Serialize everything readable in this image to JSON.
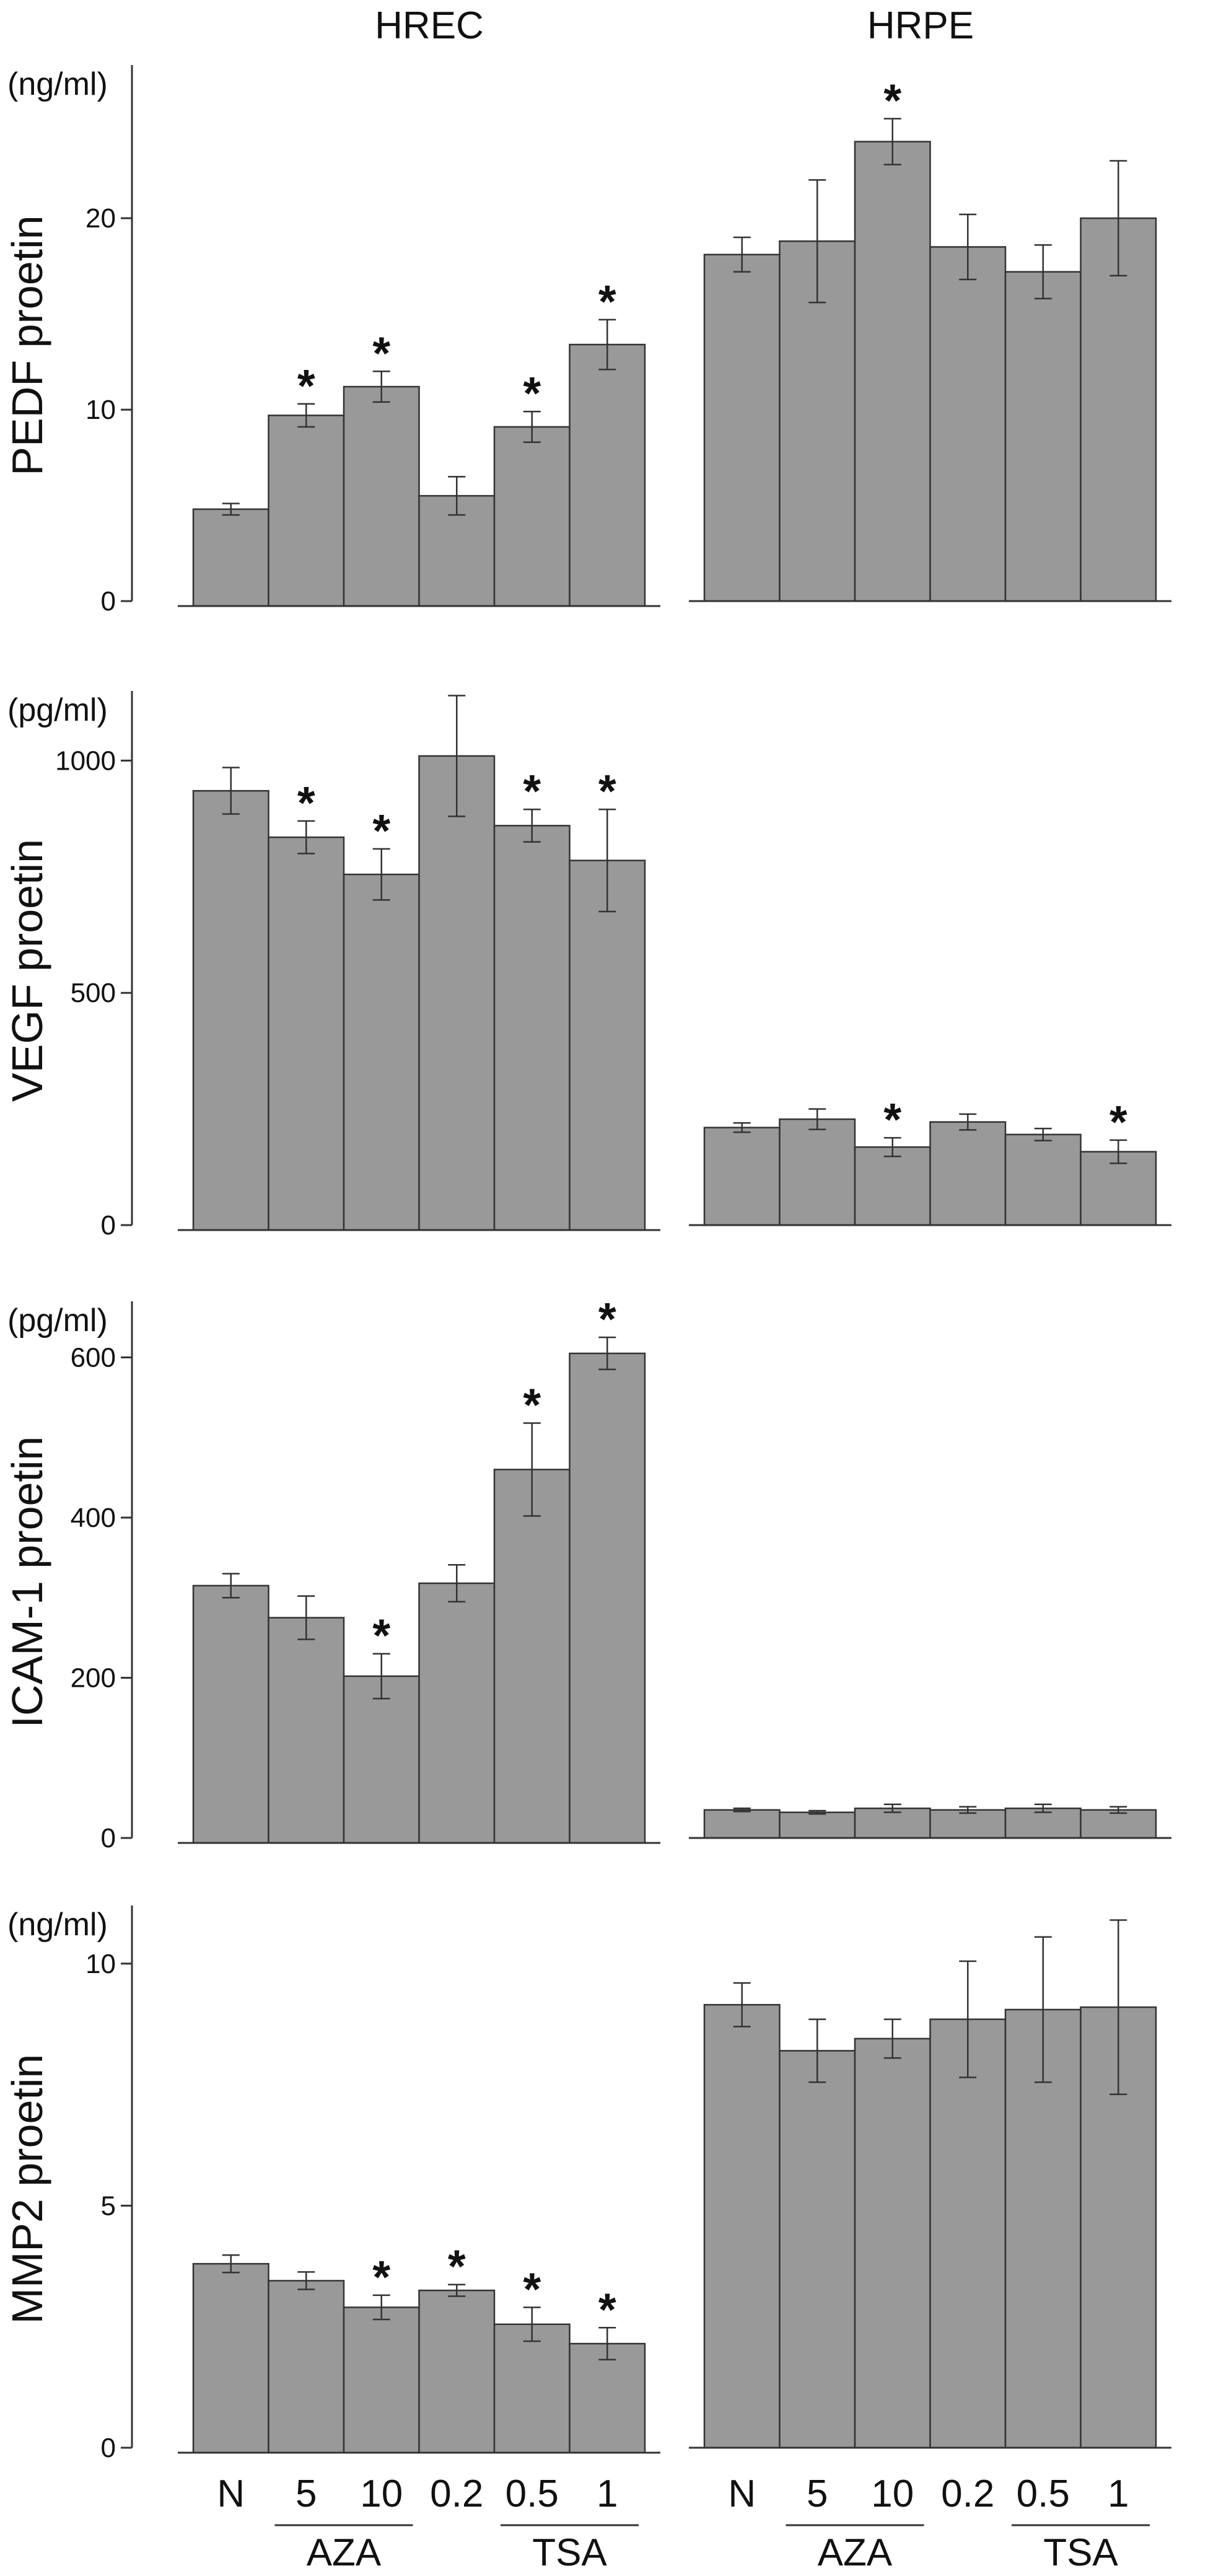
{
  "chart_data": [
    {
      "type": "bar",
      "group_headers": [
        "HREC",
        "HRPE"
      ],
      "unit_label": "(ng/ml)",
      "ylabel": "PEDF proetin",
      "ylim": [
        0,
        28
      ],
      "yticks": [
        0,
        10,
        20
      ],
      "categories": [
        "N",
        "5",
        "10",
        "0.2",
        "0.5",
        "1"
      ],
      "series": [
        {
          "name": "HREC",
          "values": [
            4.8,
            9.7,
            11.2,
            5.5,
            9.1,
            13.4
          ],
          "errors": [
            0.3,
            0.6,
            0.8,
            1.0,
            0.8,
            1.3
          ],
          "significant": [
            false,
            true,
            true,
            false,
            true,
            true
          ]
        },
        {
          "name": "HRPE",
          "values": [
            18.1,
            18.8,
            24.0,
            18.5,
            17.2,
            20.0
          ],
          "errors": [
            0.9,
            3.2,
            1.2,
            1.7,
            1.4,
            3.0
          ],
          "significant": [
            false,
            false,
            true,
            false,
            false,
            false
          ]
        }
      ],
      "bar_color": "#999999"
    },
    {
      "type": "bar",
      "unit_label": "(pg/ml)",
      "ylabel": "VEGF proetin",
      "ylim": [
        0,
        1150
      ],
      "yticks": [
        0,
        500,
        1000
      ],
      "categories": [
        "N",
        "5",
        "10",
        "0.2",
        "0.5",
        "1"
      ],
      "series": [
        {
          "name": "HREC",
          "values": [
            935,
            835,
            755,
            1010,
            860,
            785
          ],
          "errors": [
            50,
            35,
            55,
            130,
            35,
            110
          ],
          "significant": [
            false,
            true,
            true,
            false,
            true,
            true
          ]
        },
        {
          "name": "HRPE",
          "values": [
            210,
            228,
            168,
            222,
            195,
            158
          ],
          "errors": [
            10,
            22,
            20,
            17,
            13,
            25
          ],
          "significant": [
            false,
            false,
            true,
            false,
            false,
            true
          ]
        }
      ],
      "bar_color": "#999999"
    },
    {
      "type": "bar",
      "unit_label": "(pg/ml)",
      "ylabel": "ICAM-1 proetin",
      "ylim": [
        0,
        670
      ],
      "yticks": [
        0,
        200,
        400,
        600
      ],
      "categories": [
        "N",
        "5",
        "10",
        "0.2",
        "0.5",
        "1"
      ],
      "series": [
        {
          "name": "HREC",
          "values": [
            315,
            275,
            202,
            318,
            460,
            605
          ],
          "errors": [
            15,
            27,
            28,
            23,
            58,
            20
          ],
          "significant": [
            false,
            false,
            true,
            false,
            true,
            true
          ]
        },
        {
          "name": "HRPE",
          "values": [
            35,
            32,
            37,
            35,
            37,
            35
          ],
          "errors": [
            2,
            2,
            5,
            4,
            5,
            4
          ],
          "significant": [
            false,
            false,
            false,
            false,
            false,
            false
          ]
        }
      ],
      "bar_color": "#999999"
    },
    {
      "type": "bar",
      "unit_label": "(ng/ml)",
      "ylabel": "MMP2 proetin",
      "ylim": [
        0,
        11.2
      ],
      "yticks": [
        0,
        5,
        10
      ],
      "categories": [
        "N",
        "5",
        "10",
        "0.2",
        "0.5",
        "1"
      ],
      "series": [
        {
          "name": "HREC",
          "values": [
            3.8,
            3.45,
            2.9,
            3.25,
            2.55,
            2.15
          ],
          "errors": [
            0.18,
            0.18,
            0.25,
            0.12,
            0.35,
            0.33
          ],
          "significant": [
            false,
            false,
            true,
            true,
            true,
            true
          ]
        },
        {
          "name": "HRPE",
          "values": [
            9.15,
            8.2,
            8.45,
            8.85,
            9.05,
            9.1
          ],
          "errors": [
            0.45,
            0.65,
            0.4,
            1.2,
            1.5,
            1.8
          ],
          "significant": [
            false,
            false,
            false,
            false,
            false,
            false
          ]
        }
      ],
      "bar_color": "#999999"
    }
  ],
  "x_axis": {
    "left": {
      "labels": [
        "N",
        "5",
        "10",
        "0.2",
        "0.5",
        "1"
      ],
      "brackets": [
        "AZA",
        "TSA"
      ]
    },
    "right": {
      "labels": [
        "N",
        "5",
        "10",
        "0.2",
        "0.5",
        "1"
      ],
      "brackets": [
        "AZA",
        "TSA"
      ]
    }
  },
  "significance_marker": "*"
}
